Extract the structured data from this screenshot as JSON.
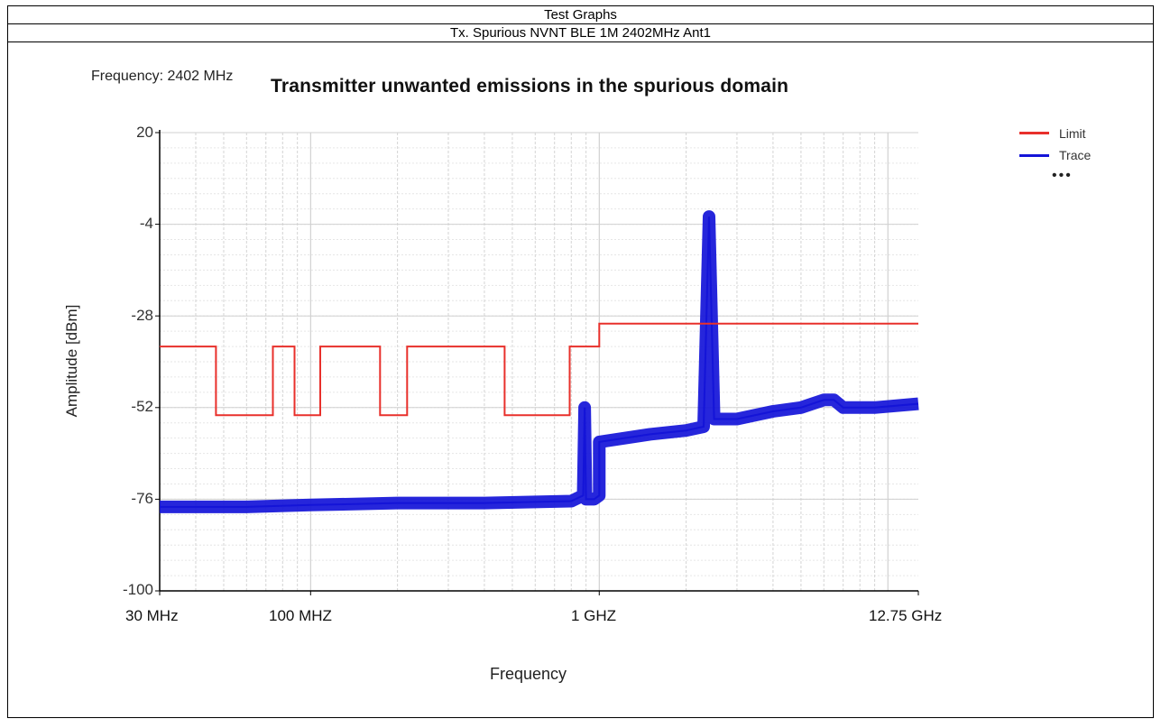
{
  "table": {
    "header": "Test Graphs",
    "subheader": "Tx. Spurious NVNT BLE 1M 2402MHz Ant1"
  },
  "annotation": "Frequency: 2402 MHz",
  "chart_data": {
    "type": "line",
    "title": "Transmitter unwanted emissions in the spurious domain",
    "xlabel": "Frequency",
    "ylabel": "Amplitude [dBm]",
    "x_scale": "log",
    "xlim_mhz": [
      30,
      12750
    ],
    "ylim": [
      -100,
      20
    ],
    "yticks": [
      "20",
      "-4",
      "-28",
      "-52",
      "-76",
      "-100"
    ],
    "xticks": [
      {
        "label": "30 MHz",
        "mhz": 30
      },
      {
        "label": "100 MHZ",
        "mhz": 100
      },
      {
        "label": "1 GHZ",
        "mhz": 1000
      },
      {
        "label": "12.75 GHz",
        "mhz": 12750
      }
    ],
    "grid": true,
    "legend_position": "top-right",
    "colors": {
      "limit": "#e8302b",
      "trace": "#1414d8"
    },
    "series": [
      {
        "name": "Limit",
        "x_mhz": [
          30,
          47,
          47,
          74,
          74,
          88,
          88,
          108,
          108,
          174,
          174,
          216,
          216,
          470,
          470,
          790,
          790,
          1000,
          1000,
          12750
        ],
        "y_dbm": [
          -36,
          -36,
          -54,
          -54,
          -36,
          -36,
          -54,
          -54,
          -36,
          -36,
          -54,
          -54,
          -36,
          -36,
          -54,
          -54,
          -36,
          -36,
          -30,
          -30
        ]
      },
      {
        "name": "Trace",
        "x_mhz": [
          30,
          60,
          100,
          200,
          400,
          800,
          880,
          890,
          900,
          960,
          1000,
          1000,
          1500,
          2000,
          2300,
          2402,
          2500,
          3000,
          4000,
          5000,
          6000,
          6500,
          7000,
          8000,
          9000,
          12750
        ],
        "y_dbm": [
          -78,
          -78,
          -77.5,
          -77,
          -77,
          -76.5,
          -75,
          -52,
          -76,
          -76,
          -75,
          -61,
          -59,
          -58,
          -57,
          -2,
          -55,
          -55,
          -53,
          -52,
          -50,
          -50,
          -52,
          -52,
          -52,
          -51
        ]
      }
    ]
  }
}
